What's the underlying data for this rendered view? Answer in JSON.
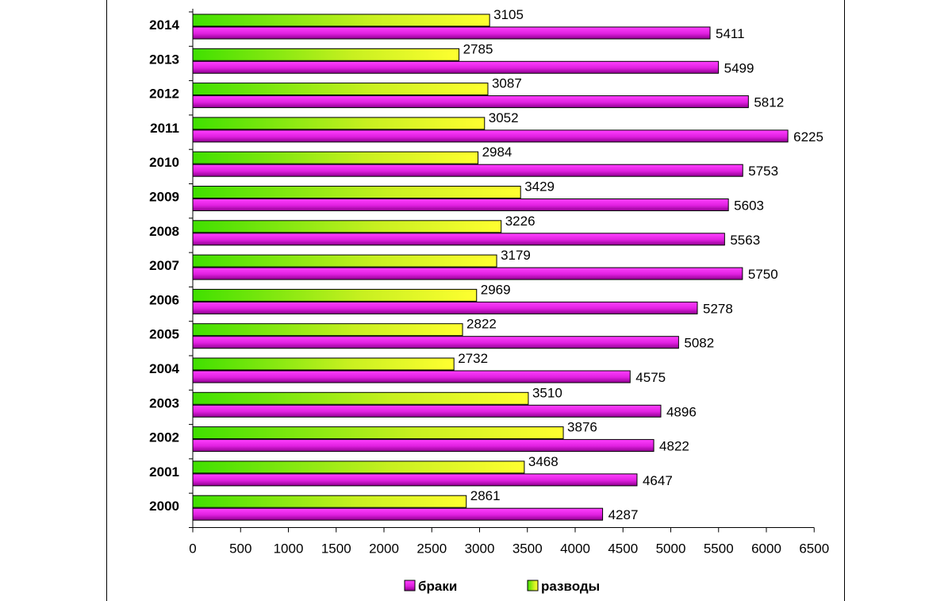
{
  "chart_data": {
    "type": "bar",
    "orientation": "horizontal",
    "categories": [
      "2000",
      "2001",
      "2002",
      "2003",
      "2004",
      "2005",
      "2006",
      "2007",
      "2008",
      "2009",
      "2010",
      "2011",
      "2012",
      "2013",
      "2014"
    ],
    "series": [
      {
        "name": "браки",
        "values": [
          4287,
          4647,
          4822,
          4896,
          4575,
          5082,
          5278,
          5750,
          5563,
          5603,
          5753,
          6225,
          5812,
          5499,
          5411
        ],
        "color": "#e020e0"
      },
      {
        "name": "разводы",
        "values": [
          2861,
          3468,
          3876,
          3510,
          2732,
          2822,
          2969,
          3179,
          3226,
          3429,
          2984,
          3052,
          3087,
          2785,
          3105
        ],
        "color": "#80ff20"
      }
    ],
    "title": "",
    "xlabel": "",
    "ylabel": "",
    "xlim": [
      0,
      6500
    ],
    "xticks": [
      0,
      500,
      1000,
      1500,
      2000,
      2500,
      3000,
      3500,
      4000,
      4500,
      5000,
      5500,
      6000,
      6500
    ],
    "grid": false,
    "legend": "bottom"
  }
}
